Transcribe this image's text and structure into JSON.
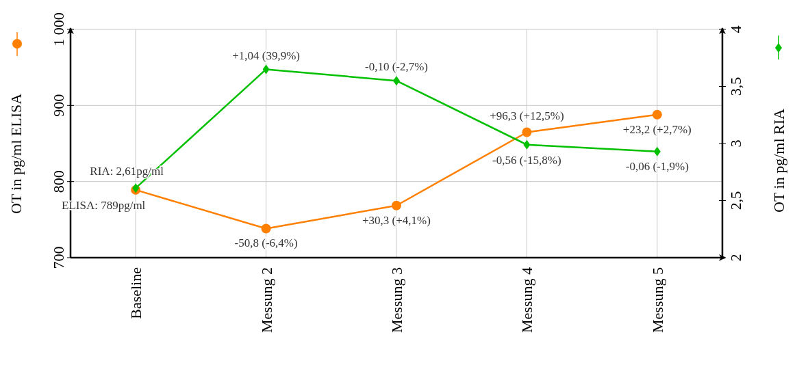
{
  "chart_data": {
    "type": "line",
    "ylabel": "OT in pg/ml ELISA",
    "y2label": "OT in pg/ml RIA",
    "categories": [
      "Baseline",
      "Messung 2",
      "Messung 3",
      "Messung 4",
      "Messung 5"
    ],
    "series": [
      {
        "color": "#ff7f00",
        "values": [
          789,
          738.2,
          768.5,
          864.8,
          888
        ],
        "marker": "circle"
      },
      {
        "color": "#00c000",
        "values": [
          2.61,
          3.65,
          3.55,
          2.99,
          2.93
        ],
        "axis": "y2",
        "marker": "diamond"
      }
    ],
    "ylim": [
      700,
      1000
    ],
    "yticks": [
      700,
      800,
      900,
      {
        "value": 1000,
        "label": "1 000"
      }
    ],
    "y2lim": [
      2,
      4
    ],
    "y2ticks": [
      2,
      {
        "value": 2.5,
        "label": "2,5"
      },
      3,
      {
        "value": 3.5,
        "label": "3,5"
      },
      4
    ],
    "grid": true,
    "annotations": [
      "ELISA: 789pg/ml",
      "-50,8 (-6,4%)",
      "+30,3 (+4,1%)",
      "+96,3 (+12,5%)",
      "+23,2 (+2,7%)",
      "RIA: 2,61pg/ml",
      "+1,04 (39,9%)",
      "-0,10 (-2,7%)",
      "-0,56 (-15,8%)",
      "-0,06 (-1,9%)"
    ]
  }
}
